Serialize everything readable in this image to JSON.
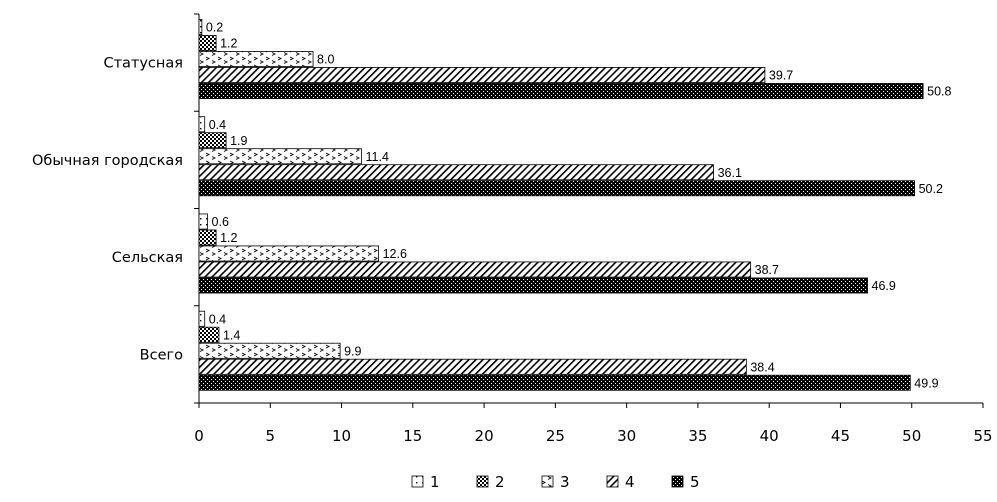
{
  "chart_data": {
    "type": "bar",
    "orientation": "horizontal",
    "categories": [
      "Статусная",
      "Обычная городская",
      "Сельская",
      "Всего"
    ],
    "series": [
      {
        "name": "1",
        "values": [
          0.2,
          0.4,
          0.6,
          0.4
        ],
        "pattern": "dots-sparse"
      },
      {
        "name": "2",
        "values": [
          1.2,
          1.9,
          1.2,
          1.4
        ],
        "pattern": "crosshatch"
      },
      {
        "name": "3",
        "values": [
          8.0,
          11.4,
          12.6,
          9.9
        ],
        "pattern": "chevrons"
      },
      {
        "name": "4",
        "values": [
          39.7,
          36.1,
          38.7,
          38.4
        ],
        "pattern": "diagonal"
      },
      {
        "name": "5",
        "values": [
          50.8,
          50.2,
          46.9,
          49.9
        ],
        "pattern": "dense-dark"
      }
    ],
    "value_labels": [
      [
        "0.2",
        "1.2",
        "8.0",
        "39.7",
        "50.8"
      ],
      [
        "0.4",
        "1.9",
        "11.4",
        "36.1",
        "50.2"
      ],
      [
        "0.6",
        "1.2",
        "12.6",
        "38.7",
        "46.9"
      ],
      [
        "0.4",
        "1.4",
        "9.9",
        "38.4",
        "49.9"
      ]
    ],
    "xlim": [
      0,
      55
    ],
    "xticks": [
      "0",
      "5",
      "10",
      "15",
      "20",
      "25",
      "30",
      "35",
      "40",
      "45",
      "50",
      "55"
    ],
    "grid": false,
    "legend_position": "bottom-center",
    "title": "",
    "xlabel": "",
    "ylabel": ""
  }
}
